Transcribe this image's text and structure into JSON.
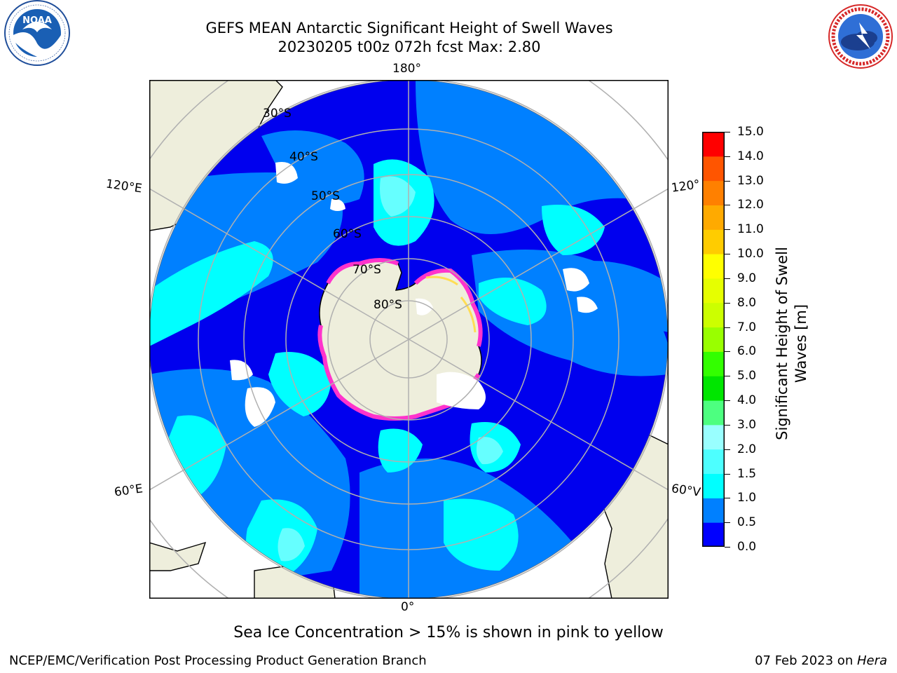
{
  "header": {
    "title_line1": "GEFS MEAN Antarctic Significant Height of Swell Waves",
    "title_line2": "20230205 t00z 072h fcst   Max: 2.80"
  },
  "logos": {
    "left": {
      "icon": "noaa-logo",
      "text": "NOAA",
      "ring_text": "NATIONAL OCEANIC AND ATMOSPHERIC ADMINISTRATION · U.S. DEPARTMENT OF COMMERCE"
    },
    "right": {
      "icon": "nws-logo",
      "ring_text": "NATIONAL WEATHER SERVICE"
    }
  },
  "map": {
    "projection": "south-polar-stereographic",
    "meridian_labels": {
      "top": "180°",
      "bottom": "0°",
      "upper_left": "120°E",
      "upper_right": "120°",
      "lower_left": "60°E",
      "lower_right": "60°V"
    },
    "latitude_labels": [
      "30°S",
      "40°S",
      "50°S",
      "60°S",
      "70°S",
      "80°S"
    ],
    "colors": {
      "land": "#eeeedc",
      "ice_low": "#ff33cc",
      "ice_high": "#ffff66",
      "grid": "#b0b0b0"
    }
  },
  "colorbar": {
    "label": "Significant Height of Swell Waves [m]",
    "label_line1": "Significant Height of Swell",
    "label_line2": "Waves [m]",
    "ticks": [
      "15.0",
      "14.0",
      "13.0",
      "12.0",
      "11.0",
      "10.0",
      "9.0",
      "8.0",
      "7.0",
      "6.0",
      "5.0",
      "4.0",
      "3.0",
      "2.0",
      "1.5",
      "1.0",
      "0.5",
      "0.0"
    ],
    "levels": [
      0.0,
      0.5,
      1.0,
      1.5,
      2.0,
      3.0,
      4.0,
      5.0,
      6.0,
      7.0,
      8.0,
      9.0,
      10.0,
      11.0,
      12.0,
      13.0,
      14.0,
      15.0
    ],
    "colors": [
      "#0000ff",
      "#0080ff",
      "#00ffff",
      "#4dffff",
      "#99ffff",
      "#4dff80",
      "#00e600",
      "#33ff00",
      "#99ff00",
      "#ccff00",
      "#e6ff00",
      "#ffff00",
      "#ffcc00",
      "#ffaa00",
      "#ff8000",
      "#ff5500",
      "#ff0000"
    ]
  },
  "note": "Sea Ice Concentration > 15% is shown in pink to yellow",
  "footer": {
    "left": "NCEP/EMC/Verification Post Processing Product Generation Branch",
    "right_date": "07 Feb 2023 on ",
    "right_host": "Hera"
  }
}
